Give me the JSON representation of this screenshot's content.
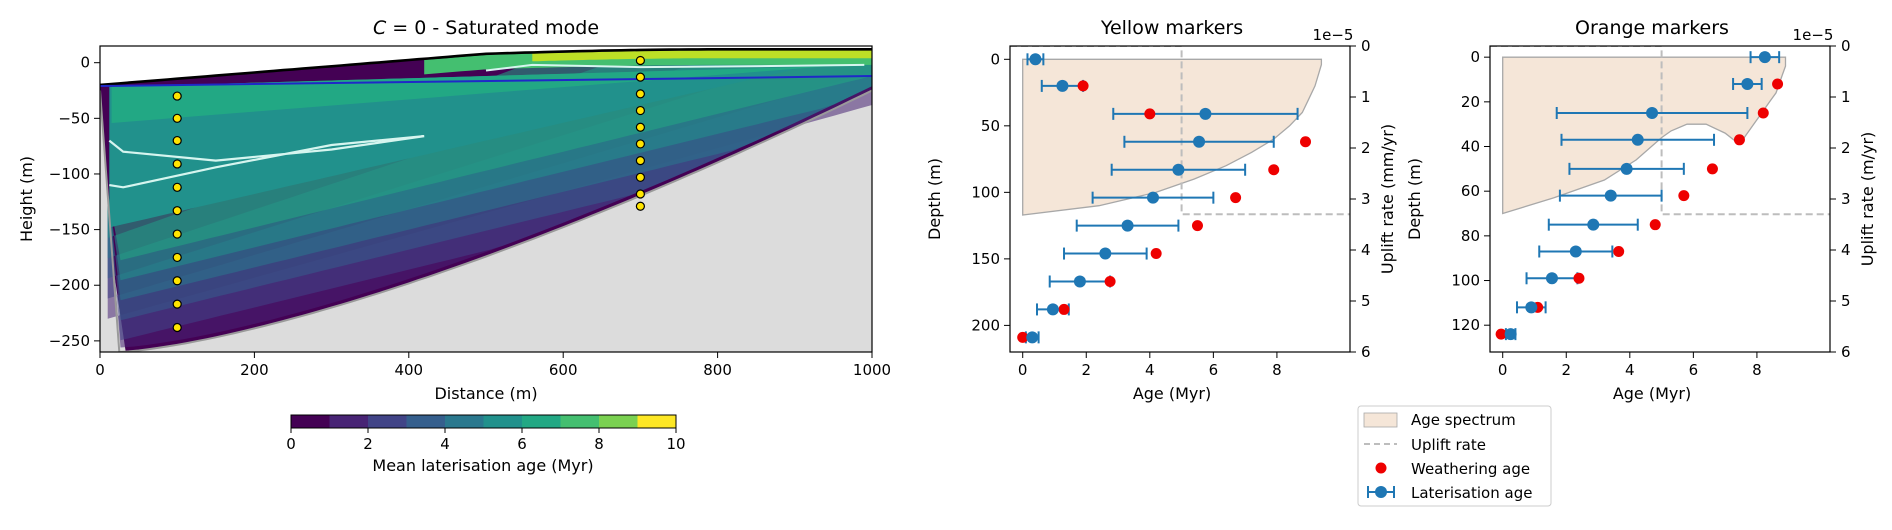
{
  "colors": {
    "viridis": [
      "#440154",
      "#482475",
      "#414487",
      "#355f8d",
      "#2a788e",
      "#21918c",
      "#22a884",
      "#44bf70",
      "#7ad151",
      "#bddf26",
      "#fde725"
    ],
    "bedrock": "#dcdcdc",
    "water_table": "#1f28c8",
    "contour": "#d6f5ef",
    "spectrum_fill": "#f5e6d8",
    "uplift_line": "#bdbdbd",
    "weathering": "#ee0000",
    "laterisation": "#1f77b4",
    "marker_fill": "#ffe400"
  },
  "chart_data": [
    {
      "type": "heatmap",
      "title_var": "C",
      "title_rest": " = 0 - Saturated mode",
      "xlabel": "Distance (m)",
      "ylabel": "Height (m)",
      "xlim": [
        0,
        1000
      ],
      "ylim": [
        -260,
        15
      ],
      "xticks": [
        "0",
        "200",
        "400",
        "600",
        "800",
        "1000"
      ],
      "xtick_values": [
        0,
        200,
        400,
        600,
        800,
        1000
      ],
      "yticks": [
        "0",
        "−50",
        "−100",
        "−150",
        "−200",
        "−250"
      ],
      "ytick_values": [
        0,
        -50,
        -100,
        -150,
        -200,
        -250
      ],
      "profile_columns": [
        {
          "x": 100,
          "depths": [
            -30,
            -50,
            -70,
            -91,
            -112,
            -133,
            -154,
            -175,
            -196,
            -217,
            -238
          ]
        },
        {
          "x": 700,
          "depths": [
            2,
            -13,
            -28,
            -43,
            -58,
            -73,
            -88,
            -103,
            -118,
            -129
          ]
        }
      ],
      "colorbar": {
        "label": "Mean laterisation age (Myr)",
        "min": 0,
        "max": 10,
        "ticks": [
          "0",
          "2",
          "4",
          "6",
          "8",
          "10"
        ],
        "tick_values": [
          0,
          2,
          4,
          6,
          8,
          10
        ]
      }
    },
    {
      "type": "scatter",
      "title": "Yellow markers",
      "xlabel": "Age (Myr)",
      "ylabel": "Depth (m)",
      "y2label": "Uplift rate (mm/yr)",
      "offset_label": "1e−5",
      "xlim": [
        -0.4,
        10.3
      ],
      "ylim": [
        220,
        -10
      ],
      "y2lim": [
        6,
        0
      ],
      "xticks": [
        "0",
        "2",
        "4",
        "6",
        "8"
      ],
      "xtick_values": [
        0,
        2,
        4,
        6,
        8
      ],
      "yticks": [
        "0",
        "50",
        "100",
        "150",
        "200"
      ],
      "ytick_values": [
        0,
        50,
        100,
        150,
        200
      ],
      "y2ticks": [
        "0",
        "1",
        "2",
        "3",
        "4",
        "5",
        "6"
      ],
      "y2tick_values": [
        0,
        1,
        2,
        3,
        4,
        5,
        6
      ],
      "uplift_rate": {
        "age_break": 5.0,
        "rate_before": 0.0,
        "rate_after": 3.3
      },
      "age_spectrum_outline": [
        [
          0,
          0
        ],
        [
          9.4,
          0
        ],
        [
          9.4,
          4
        ],
        [
          9.3,
          12
        ],
        [
          9.2,
          20
        ],
        [
          9.0,
          30
        ],
        [
          8.8,
          40
        ],
        [
          8.4,
          50
        ],
        [
          7.9,
          60
        ],
        [
          7.2,
          70
        ],
        [
          6.4,
          80
        ],
        [
          5.4,
          90
        ],
        [
          4.2,
          100
        ],
        [
          2.4,
          110
        ],
        [
          0,
          117
        ]
      ],
      "weathering_age": {
        "depth": [
          20,
          41,
          62,
          83,
          104,
          125,
          146,
          167,
          188,
          209
        ],
        "age": [
          1.9,
          4.0,
          8.9,
          7.9,
          6.7,
          5.5,
          4.2,
          2.75,
          1.3,
          0.0
        ]
      },
      "laterisation_age": {
        "depth": [
          0,
          20,
          41,
          62,
          83,
          104,
          125,
          146,
          167,
          188,
          209
        ],
        "age": [
          0.4,
          1.25,
          5.75,
          5.55,
          4.9,
          4.1,
          3.3,
          2.6,
          1.8,
          0.95,
          0.3
        ],
        "err": [
          0.25,
          0.65,
          2.9,
          2.35,
          2.1,
          1.9,
          1.6,
          1.3,
          0.95,
          0.5,
          0.2
        ]
      }
    },
    {
      "type": "scatter",
      "title": "Orange markers",
      "xlabel": "Age (Myr)",
      "ylabel": "Depth (m)",
      "y2label": "Uplift rate (m/yr)",
      "offset_label": "1e−5",
      "xlim": [
        -0.4,
        10.3
      ],
      "ylim": [
        132,
        -5
      ],
      "y2lim": [
        6,
        0
      ],
      "xticks": [
        "0",
        "2",
        "4",
        "6",
        "8"
      ],
      "xtick_values": [
        0,
        2,
        4,
        6,
        8
      ],
      "yticks": [
        "0",
        "20",
        "40",
        "60",
        "80",
        "100",
        "120"
      ],
      "ytick_values": [
        0,
        20,
        40,
        60,
        80,
        100,
        120
      ],
      "y2ticks": [
        "0",
        "1",
        "2",
        "3",
        "4",
        "5",
        "6"
      ],
      "y2tick_values": [
        0,
        1,
        2,
        3,
        4,
        5,
        6
      ],
      "uplift_rate": {
        "age_break": 5.0,
        "rate_before": 0.0,
        "rate_after": 3.3
      },
      "age_spectrum_outline": [
        [
          0,
          0
        ],
        [
          8.9,
          0
        ],
        [
          8.9,
          4
        ],
        [
          8.8,
          8
        ],
        [
          8.7,
          12
        ],
        [
          8.6,
          16
        ],
        [
          8.4,
          20
        ],
        [
          8.2,
          24
        ],
        [
          8.0,
          28
        ],
        [
          7.8,
          32
        ],
        [
          7.6,
          36
        ],
        [
          7.45,
          39
        ],
        [
          7.0,
          34
        ],
        [
          6.4,
          30
        ],
        [
          5.8,
          30
        ],
        [
          5.3,
          33
        ],
        [
          5.0,
          36
        ],
        [
          4.2,
          46
        ],
        [
          3.2,
          55
        ],
        [
          1.6,
          63
        ],
        [
          0,
          70
        ]
      ],
      "weathering_age": {
        "depth": [
          12,
          25,
          37,
          50,
          62,
          75,
          87,
          99,
          112,
          124
        ],
        "age": [
          8.65,
          8.2,
          7.45,
          6.6,
          5.7,
          4.8,
          3.65,
          2.4,
          1.1,
          -0.05
        ]
      },
      "laterisation_age": {
        "depth": [
          0,
          12,
          25,
          37,
          50,
          62,
          75,
          87,
          99,
          112,
          124
        ],
        "age": [
          8.25,
          7.7,
          4.7,
          4.25,
          3.9,
          3.4,
          2.85,
          2.3,
          1.55,
          0.9,
          0.25
        ],
        "err": [
          0.45,
          0.45,
          3.0,
          2.4,
          1.8,
          1.6,
          1.4,
          1.15,
          0.8,
          0.45,
          0.15
        ]
      }
    }
  ],
  "legend": {
    "items": [
      {
        "label": "Age spectrum",
        "kind": "patch"
      },
      {
        "label": "Uplift rate",
        "kind": "dashed"
      },
      {
        "label": "Weathering age",
        "kind": "red-dot"
      },
      {
        "label": "Laterisation age",
        "kind": "errorbar"
      }
    ]
  }
}
